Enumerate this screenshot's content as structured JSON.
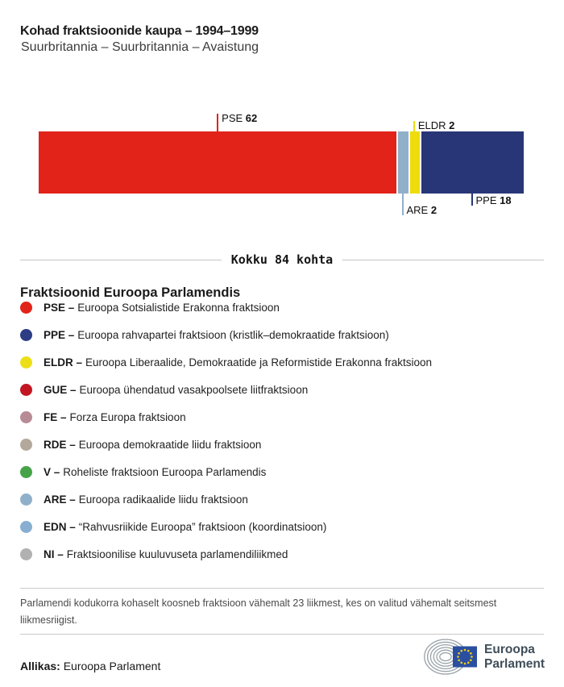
{
  "header": {
    "title": "Kohad fraktsioonide kaupa – 1994–1999",
    "subtitle": "Suurbritannia – Suurbritannia – Avaistung"
  },
  "chart_data": {
    "type": "bar",
    "orientation": "horizontal-stacked",
    "title": "Kohad fraktsioonide kaupa – 1994–1999",
    "subtitle": "Suurbritannia – Suurbritannia – Avaistung",
    "total_seats": 84,
    "total_label": "Kokku 84 kohta",
    "categories": [
      "PSE",
      "ARE",
      "ELDR",
      "PPE"
    ],
    "values": [
      62,
      2,
      2,
      18
    ],
    "segments": [
      {
        "group": "PSE",
        "seats": 62,
        "color": "#e2231a",
        "label_position": "above",
        "tick": 22
      },
      {
        "group": "ARE",
        "seats": 2,
        "color": "#90b0ca",
        "label_position": "below",
        "tick": 27
      },
      {
        "group": "ELDR",
        "seats": 2,
        "color": "#eedc0c",
        "label_position": "above",
        "tick": 13
      },
      {
        "group": "PPE",
        "seats": 18,
        "color": "#283577",
        "label_position": "below",
        "tick": 15
      }
    ],
    "legend_position": "below",
    "grid": false
  },
  "legend": {
    "heading": "Fraktsioonid Euroopa Parlamendis",
    "items": [
      {
        "abbr": "PSE –",
        "name": "Euroopa Sotsialistide Erakonna fraktsioon",
        "color": "#e2231a"
      },
      {
        "abbr": "PPE –",
        "name": "Euroopa rahvapartei fraktsioon (kristlik–demokraatide fraktsioon)",
        "color": "#2c3c85"
      },
      {
        "abbr": "ELDR –",
        "name": "Euroopa Liberaalide, Demokraatide ja Reformistide Erakonna fraktsioon",
        "color": "#ecdf17"
      },
      {
        "abbr": "GUE –",
        "name": "Euroopa ühendatud vasakpoolsete liitfraktsioon",
        "color": "#c31622"
      },
      {
        "abbr": "FE –",
        "name": "Forza Europa fraktsioon",
        "color": "#b78b95"
      },
      {
        "abbr": "RDE –",
        "name": "Euroopa demokraatide liidu fraktsioon",
        "color": "#b3a89b"
      },
      {
        "abbr": "V –",
        "name": "Roheliste fraktsioon Euroopa Parlamendis",
        "color": "#46a349"
      },
      {
        "abbr": "ARE –",
        "name": "Euroopa radikaalide liidu fraktsioon",
        "color": "#90b0ca"
      },
      {
        "abbr": "EDN –",
        "name": "“Rahvusriikide Euroopa” fraktsioon (koordinatsioon)",
        "color": "#88afd0"
      },
      {
        "abbr": "NI –",
        "name": "Fraktsioonilise kuuluvuseta parlamendiliikmed",
        "color": "#b1b1b1"
      }
    ]
  },
  "footer": {
    "note": "Parlamendi kodukorra kohaselt koosneb fraktsioon vähemalt 23 liikmest, kes on valitud vähemalt seitsmest\nliikmesriigist.",
    "source_label": "Allikas:",
    "source": "Euroopa Parlament",
    "logo_line1": "Euroopa",
    "logo_line2": "Parlament",
    "logo_colors": {
      "arcs": "#99a2a9",
      "flag": "#2b4fa0",
      "stars": "#f5d010",
      "text": "#3f4e5a"
    }
  }
}
